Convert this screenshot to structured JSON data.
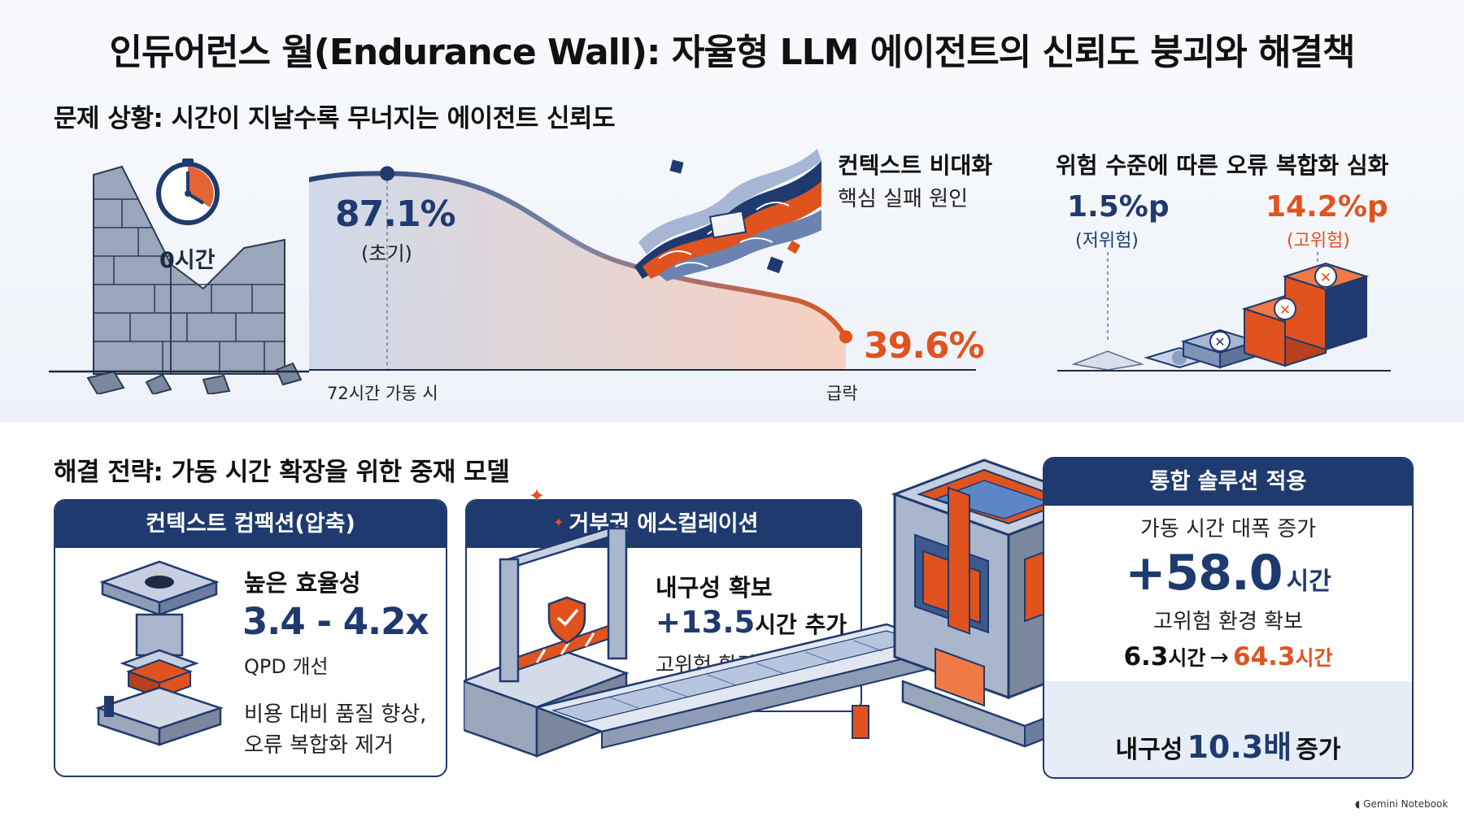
{
  "page_title": "인듀어런스 월(Endurance Wall): 자율형 LLM 에이전트의 신뢰도 붕괴와 해결책",
  "problem": {
    "heading": "문제 상황: 시간이 지날수록 무너지는 에이전트 신뢰도",
    "clock_label": "0시간",
    "start_value": "87.1%",
    "start_note": "(초기)",
    "end_value": "39.6%",
    "x_label_left": "72시간 가동 시",
    "x_label_right": "급락",
    "context_title": "컨텍스트 비대화",
    "context_sub": "핵심 실패 원인",
    "risk_title": "위험 수준에 따른 오류 복합화 심화",
    "risk_low_value": "1.5%p",
    "risk_low_label": "(저위험)",
    "risk_high_value": "14.2%p",
    "risk_high_label": "(고위험)"
  },
  "chart_data": [
    {
      "type": "line",
      "x": [
        "0시간",
        "72시간 가동 시"
      ],
      "y": [
        87.1,
        39.6
      ],
      "yunit": "%",
      "annotations": [
        "87.1% (초기)",
        "39.6%",
        "급락"
      ]
    },
    {
      "type": "bar",
      "categories": [
        "저위험",
        "고위험"
      ],
      "values": [
        1.5,
        14.2
      ],
      "yunit": "%p",
      "title": "위험 수준에 따른 오류 복합화 심화"
    }
  ],
  "solution": {
    "heading": "해결 전략: 가동 시간 확장을 위한 중재 모델",
    "card1": {
      "header": "컨텍스트 컴팩션(압축)",
      "title": "높은 효율성",
      "value": "3.4 - 4.2x",
      "metric": "QPD 개선",
      "desc_line1": "비용 대비 품질 향상,",
      "desc_line2": "오류 복합화 제거"
    },
    "card2": {
      "header": "거부권 에스컬레이션",
      "title": "내구성 확보",
      "value": "+13.5",
      "unit": "시간 추가",
      "note": "고위험 환경"
    },
    "card3": {
      "header": "통합 솔루션 적용",
      "sub": "가동 시간 대폭 증가",
      "value": "+58.0",
      "unit": "시간",
      "note": "고위험 환경 확보",
      "from_value": "6.3",
      "from_unit": "시간",
      "arrow": "→",
      "to_value": "64.3",
      "to_unit": "시간",
      "footer_prefix": "내구성",
      "footer_value": "10.3배",
      "footer_suffix": "증가"
    }
  },
  "watermark": "Gemini Notebook",
  "colors": {
    "navy": "#1e3a6e",
    "orange": "#e0531f",
    "gray": "#6b7a93"
  }
}
